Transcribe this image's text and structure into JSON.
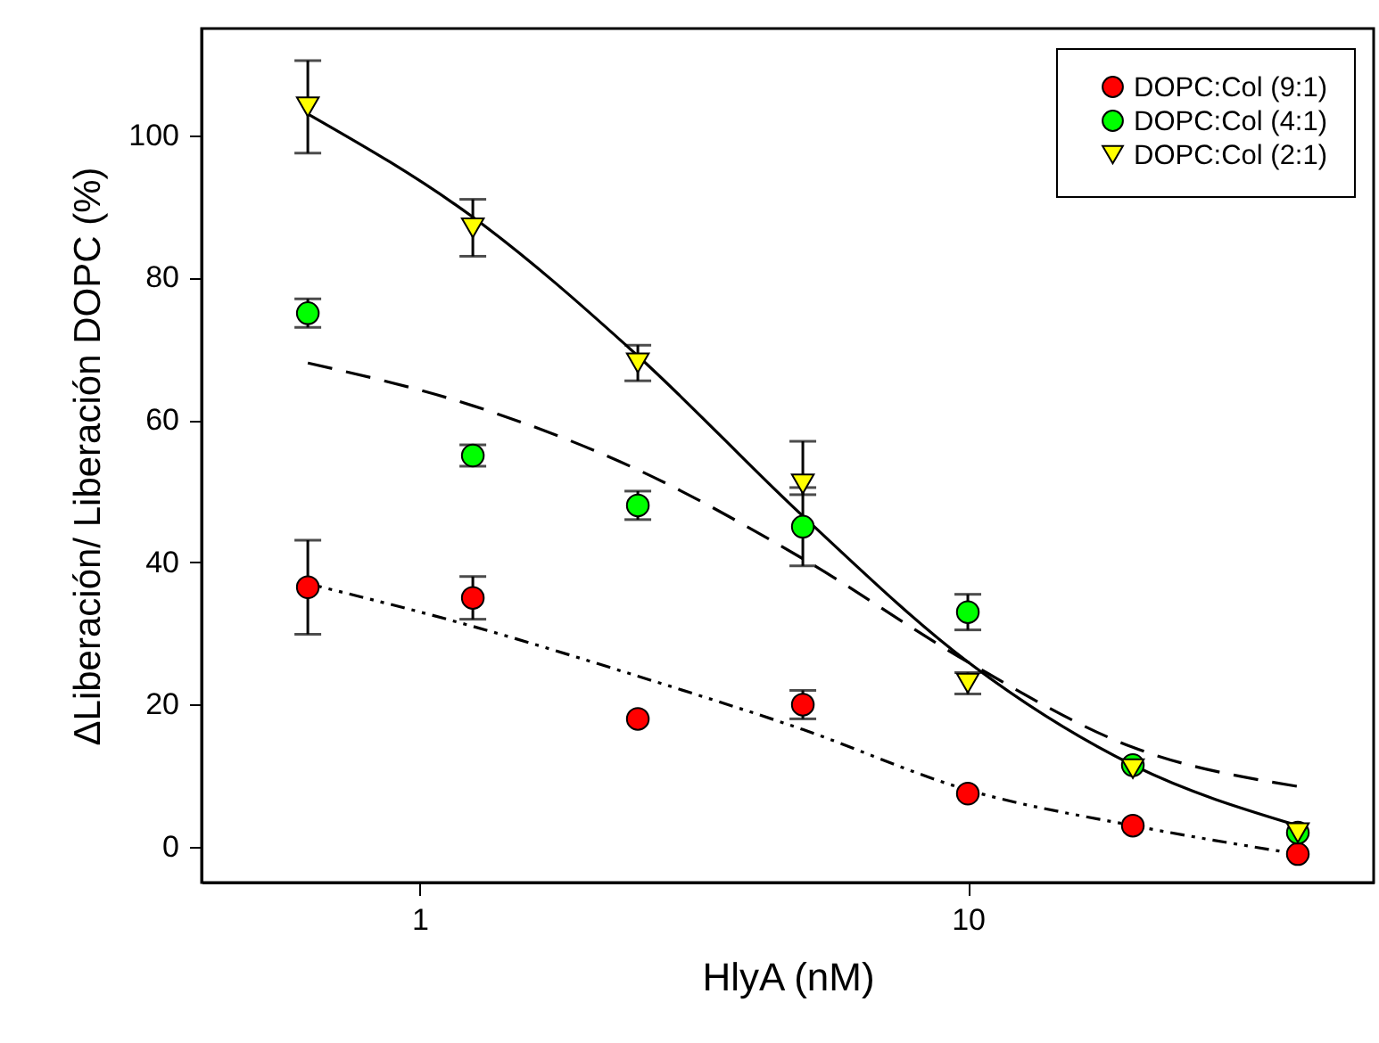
{
  "chart_data": {
    "type": "scatter",
    "xlabel": "HlyA (nM)",
    "ylabel": "ΔLiberación/ Liberación DOPC  (%)",
    "log": "x",
    "xlim": [
      0.4,
      55
    ],
    "xticks": [
      1,
      10
    ],
    "ylim": [
      -5,
      115
    ],
    "yticks": [
      0,
      20,
      40,
      60,
      80,
      100
    ],
    "grid": false,
    "legend": "top right",
    "x": [
      0.625,
      1.25,
      2.5,
      5,
      10,
      20,
      40
    ],
    "series": [
      {
        "name": "DOPC:Col (9:1)",
        "marker": "circle",
        "color": "#ff0000",
        "values": [
          36.5,
          35,
          18,
          20,
          7.5,
          3,
          -1
        ],
        "errors": [
          6.6,
          3,
          null,
          2,
          null,
          null,
          null
        ]
      },
      {
        "name": "DOPC:Col (4:1)",
        "marker": "circle",
        "color": "#00ff00",
        "values": [
          75,
          55,
          48,
          45,
          33,
          11.5,
          2
        ],
        "errors": [
          2,
          1.5,
          2,
          5.5,
          2.5,
          null,
          null
        ]
      },
      {
        "name": "DOPC:Col (2:1)",
        "marker": "triangle",
        "color": "#ffff00",
        "values": [
          104,
          87,
          68,
          51,
          23,
          11,
          2
        ],
        "errors": [
          6.5,
          4,
          2.5,
          [
            49.5,
            57
          ],
          1.5,
          null,
          null
        ]
      },
      {
        "type": "line",
        "line_style": "solid",
        "color": "#000000",
        "values": [
          103,
          88.5,
          69,
          46.5,
          26,
          11.5,
          3
        ]
      },
      {
        "type": "line",
        "line_style": "dashed",
        "color": "#000000",
        "values": [
          68,
          62,
          53,
          40.5,
          26,
          14,
          8.5
        ]
      },
      {
        "type": "line",
        "line_style": "dotted",
        "color": "#000000",
        "values": [
          37,
          31,
          24,
          16.5,
          8,
          3,
          -1
        ]
      }
    ]
  }
}
